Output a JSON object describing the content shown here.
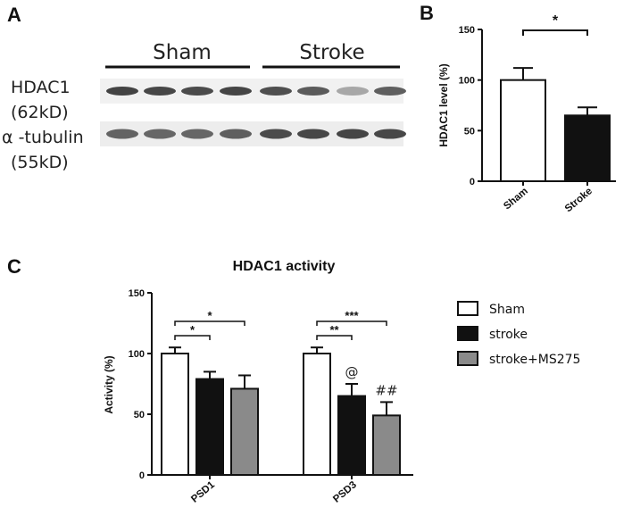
{
  "panels": {
    "a": "A",
    "b": "B",
    "c": "C"
  },
  "blot": {
    "groups": [
      "Sham",
      "Stroke"
    ],
    "rows": [
      {
        "label_line1": "HDAC1",
        "label_line2": "(62kD)",
        "intensities": [
          0.86,
          0.84,
          0.82,
          0.85,
          0.8,
          0.74,
          0.35,
          0.72
        ]
      },
      {
        "label_line1": "α -tubulin",
        "label_line2": "(55kD)",
        "intensities": [
          0.7,
          0.68,
          0.68,
          0.72,
          0.82,
          0.84,
          0.85,
          0.84
        ]
      }
    ]
  },
  "chart_data": [
    {
      "type": "bar",
      "title": "",
      "ylabel": "HDAC1 level (%)",
      "xlabel": "",
      "ylim": [
        0,
        150
      ],
      "yticks": [
        "0",
        "50",
        "100",
        "150"
      ],
      "categories": [
        "Sham",
        "Stroke"
      ],
      "values": [
        100,
        65
      ],
      "errors": [
        12,
        8
      ],
      "colors": [
        "#ffffff",
        "#111111"
      ],
      "significance": [
        {
          "between": [
            0,
            1
          ],
          "label": "*"
        }
      ]
    },
    {
      "type": "bar",
      "title": "HDAC1 activity",
      "ylabel": "Activity (%)",
      "xlabel": "",
      "ylim": [
        0,
        150
      ],
      "yticks": [
        "0",
        "50",
        "100",
        "150"
      ],
      "categories": [
        "PSD1",
        "PSD3"
      ],
      "series": [
        {
          "name": "Sham",
          "values": [
            100,
            100
          ],
          "errors": [
            5,
            5
          ],
          "color": "#ffffff"
        },
        {
          "name": "stroke",
          "values": [
            79,
            65
          ],
          "errors": [
            6,
            10
          ],
          "color": "#111111"
        },
        {
          "name": "stroke+MS275",
          "values": [
            71,
            49
          ],
          "errors": [
            11,
            11
          ],
          "color": "#8a8a8a"
        }
      ],
      "significance": [
        {
          "category": 0,
          "between": [
            0,
            1
          ],
          "label": "*"
        },
        {
          "category": 0,
          "between": [
            0,
            2
          ],
          "label": "*"
        },
        {
          "category": 1,
          "between": [
            0,
            1
          ],
          "label": "**"
        },
        {
          "category": 1,
          "between": [
            0,
            2
          ],
          "label": "***"
        }
      ],
      "bar_markers": [
        {
          "category": 1,
          "series": 1,
          "label": "@"
        },
        {
          "category": 1,
          "series": 2,
          "label": "##"
        }
      ]
    }
  ]
}
